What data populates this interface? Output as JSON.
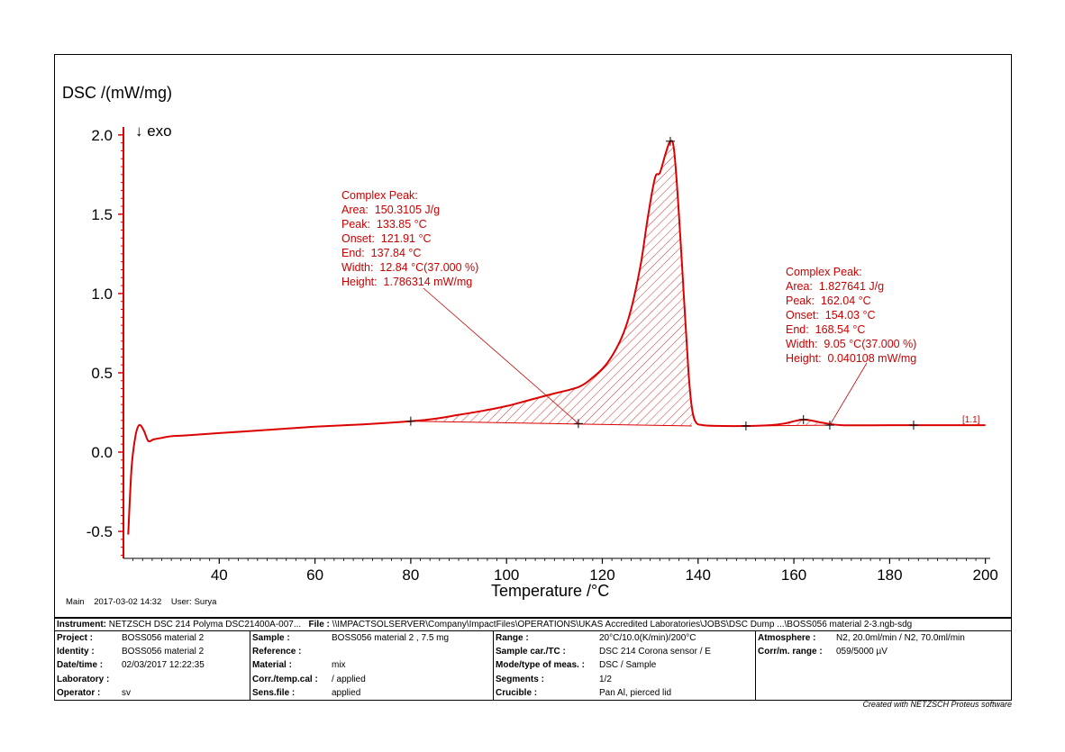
{
  "chart_data": {
    "type": "line",
    "ylabel": "DSC /(mW/mg)",
    "xlabel": "Temperature /°C",
    "direction_label": "↓ exo",
    "xlim": [
      20,
      201
    ],
    "ylim": [
      -0.67,
      2.05
    ],
    "x_ticks": [
      40,
      60,
      80,
      100,
      120,
      140,
      160,
      180,
      200
    ],
    "y_ticks": [
      -0.5,
      0.0,
      0.5,
      1.0,
      1.5,
      2.0
    ],
    "y_tick_labels": [
      "-0.5",
      "0.0",
      "0.5",
      "1.0",
      "1.5",
      "2.0"
    ],
    "grid": false,
    "curve_label": "[1.1]",
    "series": [
      {
        "x": [
          21.0,
          21.7,
          22.5,
          23.3,
          24.2,
          25.2,
          26.3,
          28,
          30,
          33,
          40,
          50,
          60,
          70,
          80,
          85,
          90,
          95,
          100,
          105,
          110,
          115,
          118,
          121,
          124,
          126,
          128,
          129.5,
          131,
          132,
          133.2,
          134.2,
          135,
          136,
          137,
          138,
          138.7,
          139.5,
          141,
          145,
          150,
          155,
          158,
          162,
          166,
          170,
          180,
          190,
          200
        ],
        "y": [
          -0.52,
          -0.1,
          0.1,
          0.17,
          0.14,
          0.07,
          0.08,
          0.09,
          0.1,
          0.105,
          0.12,
          0.14,
          0.16,
          0.175,
          0.195,
          0.21,
          0.235,
          0.26,
          0.29,
          0.33,
          0.37,
          0.41,
          0.47,
          0.56,
          0.72,
          0.9,
          1.18,
          1.48,
          1.73,
          1.76,
          1.88,
          1.96,
          1.9,
          1.5,
          1.0,
          0.5,
          0.28,
          0.19,
          0.17,
          0.165,
          0.165,
          0.17,
          0.18,
          0.205,
          0.185,
          0.17,
          0.17,
          0.17,
          0.17
        ]
      }
    ],
    "peaks": [
      {
        "title": "Complex Peak:",
        "lines": [
          [
            "Area:",
            "150.3105 J/g"
          ],
          [
            "Peak:",
            "133.85 °C"
          ],
          [
            "Onset:",
            "121.91 °C"
          ],
          [
            "End:",
            "137.84 °C"
          ],
          [
            "Width:",
            "12.84 °C(37.000 %)"
          ],
          [
            "Height:",
            "1.786314 mW/mg"
          ]
        ],
        "baseline": {
          "x": [
            80,
            138.7
          ],
          "y": [
            0.195,
            0.165
          ]
        },
        "marks": [
          [
            80,
            0.195
          ],
          [
            115,
            0.18
          ],
          [
            134.2,
            1.96
          ]
        ]
      },
      {
        "title": "Complex Peak:",
        "lines": [
          [
            "Area:",
            "1.827641 J/g"
          ],
          [
            "Peak:",
            "162.04 °C"
          ],
          [
            "Onset:",
            "154.03 °C"
          ],
          [
            "End:",
            "168.54 °C"
          ],
          [
            "Width:",
            "9.05 °C(37.000 %)"
          ],
          [
            "Height:",
            "0.040108 mW/mg"
          ]
        ],
        "baseline": {
          "x": [
            150,
            167.5
          ],
          "y": [
            0.165,
            0.17
          ]
        },
        "marks": [
          [
            150,
            0.165
          ],
          [
            162,
            0.205
          ],
          [
            167.5,
            0.17
          ],
          [
            185,
            0.17
          ]
        ]
      }
    ]
  },
  "meta": {
    "segment": "Main",
    "datetime": "2017-03-02 14:32",
    "user_label": "User:",
    "user": "Surya"
  },
  "info": {
    "instrument_label": "Instrument:",
    "instrument": "NETZSCH DSC 214 Polyma DSC21400A-007...",
    "file_label": "File :",
    "file": "\\\\IMPACTSOLSERVER\\Company\\ImpactFiles\\OPERATIONS\\UKAS Accredited Laboratories\\JOBS\\DSC Dump ...\\BOSS056 material 2-3.ngb-sdg",
    "col1": [
      [
        "Project :",
        "BOSS056 material 2"
      ],
      [
        "Identity :",
        "BOSS056 material 2"
      ],
      [
        "Date/time :",
        "02/03/2017 12:22:35"
      ],
      [
        "Laboratory :",
        ""
      ],
      [
        "Operator :",
        "sv"
      ]
    ],
    "col2": [
      [
        "Sample :",
        "BOSS056 material 2 , 7.5 mg"
      ],
      [
        "Reference :",
        ""
      ],
      [
        "Material :",
        "mix"
      ],
      [
        "Corr./temp.cal :",
        "/ applied"
      ],
      [
        "Sens.file :",
        "applied"
      ]
    ],
    "col3": [
      [
        "Range :",
        "20°C/10.0(K/min)/200°C"
      ],
      [
        "Sample car./TC :",
        "DSC 214 Corona sensor / E"
      ],
      [
        "Mode/type of meas. :",
        "DSC / Sample"
      ],
      [
        "Segments :",
        "1/2"
      ],
      [
        "Crucible :",
        "Pan Al, pierced lid"
      ]
    ],
    "col4": [
      [
        "Atmosphere :",
        "N2, 20.0ml/min / N2, 70.0ml/min"
      ],
      [
        "Corr/m. range :",
        "059/5000 µV"
      ]
    ]
  },
  "credit": "Created with NETZSCH Proteus software",
  "colors": {
    "curve": "#dd0000",
    "text_red": "#cc0000",
    "axis": "#dd0000"
  }
}
